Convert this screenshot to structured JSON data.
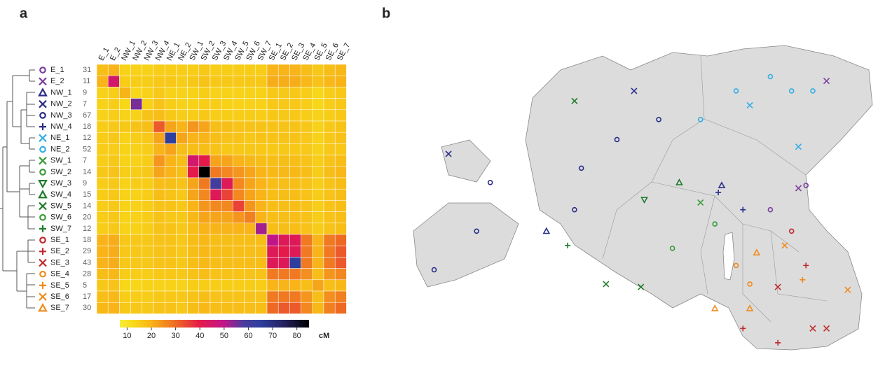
{
  "chart_data": [
    {
      "type": "heatmap",
      "panel": "a",
      "groups": [
        {
          "name": "E_1",
          "count": 31,
          "color": "#7b3f9e",
          "symbol": "circle"
        },
        {
          "name": "E_2",
          "count": 11,
          "color": "#7b3f9e",
          "symbol": "x"
        },
        {
          "name": "NW_1",
          "count": 9,
          "color": "#2b2d8a",
          "symbol": "triangle"
        },
        {
          "name": "NW_2",
          "count": 7,
          "color": "#2b2d8a",
          "symbol": "x"
        },
        {
          "name": "NW_3",
          "count": 67,
          "color": "#2b2d8a",
          "symbol": "circle"
        },
        {
          "name": "NW_4",
          "count": 18,
          "color": "#2b2d8a",
          "symbol": "plus"
        },
        {
          "name": "NE_1",
          "count": 12,
          "color": "#35aee3",
          "symbol": "x"
        },
        {
          "name": "NE_2",
          "count": 52,
          "color": "#35aee3",
          "symbol": "circle"
        },
        {
          "name": "SW_1",
          "count": 7,
          "color": "#3a9a3a",
          "symbol": "x"
        },
        {
          "name": "SW_2",
          "count": 14,
          "color": "#3a9a3a",
          "symbol": "circle"
        },
        {
          "name": "SW_3",
          "count": 9,
          "color": "#1f7a2a",
          "symbol": "triangle-down"
        },
        {
          "name": "SW_4",
          "count": 15,
          "color": "#1f7a2a",
          "symbol": "triangle"
        },
        {
          "name": "SW_5",
          "count": 14,
          "color": "#1f7a2a",
          "symbol": "x"
        },
        {
          "name": "SW_6",
          "count": 20,
          "color": "#3a9a3a",
          "symbol": "circle"
        },
        {
          "name": "SW_7",
          "count": 12,
          "color": "#1f7a2a",
          "symbol": "plus"
        },
        {
          "name": "SE_1",
          "count": 18,
          "color": "#c0282d",
          "symbol": "circle"
        },
        {
          "name": "SE_2",
          "count": 29,
          "color": "#c0282d",
          "symbol": "plus"
        },
        {
          "name": "SE_3",
          "count": 43,
          "color": "#c0282d",
          "symbol": "x"
        },
        {
          "name": "SE_4",
          "count": 28,
          "color": "#f08a1c",
          "symbol": "circle"
        },
        {
          "name": "SE_5",
          "count": 5,
          "color": "#f08a1c",
          "symbol": "plus"
        },
        {
          "name": "SE_6",
          "count": 17,
          "color": "#f08a1c",
          "symbol": "x"
        },
        {
          "name": "SE_7",
          "count": 30,
          "color": "#f08a1c",
          "symbol": "triangle"
        }
      ],
      "matrix": [
        [
          18,
          20,
          14,
          14,
          14,
          15,
          15,
          15,
          15,
          16,
          15,
          15,
          15,
          15,
          15,
          20,
          20,
          20,
          18,
          16,
          18,
          19
        ],
        [
          20,
          45,
          15,
          15,
          15,
          16,
          16,
          15,
          16,
          17,
          16,
          16,
          16,
          16,
          16,
          21,
          21,
          21,
          19,
          17,
          19,
          20
        ],
        [
          14,
          15,
          20,
          13,
          14,
          16,
          14,
          14,
          14,
          15,
          14,
          14,
          14,
          14,
          14,
          16,
          16,
          16,
          15,
          13,
          15,
          16
        ],
        [
          14,
          15,
          13,
          55,
          14,
          17,
          15,
          14,
          14,
          15,
          15,
          14,
          14,
          14,
          14,
          16,
          16,
          16,
          15,
          13,
          15,
          16
        ],
        [
          14,
          15,
          14,
          14,
          17,
          18,
          16,
          15,
          15,
          16,
          15,
          15,
          15,
          15,
          15,
          16,
          16,
          16,
          15,
          14,
          15,
          16
        ],
        [
          15,
          16,
          16,
          17,
          18,
          32,
          22,
          20,
          24,
          22,
          18,
          18,
          17,
          17,
          17,
          17,
          17,
          17,
          16,
          14,
          16,
          17
        ],
        [
          15,
          16,
          14,
          15,
          16,
          22,
          65,
          22,
          20,
          20,
          18,
          17,
          17,
          16,
          17,
          17,
          17,
          17,
          16,
          14,
          16,
          17
        ],
        [
          15,
          15,
          14,
          14,
          15,
          20,
          22,
          18,
          18,
          18,
          17,
          16,
          16,
          16,
          16,
          16,
          16,
          16,
          16,
          14,
          16,
          16
        ],
        [
          15,
          16,
          14,
          14,
          15,
          24,
          20,
          18,
          45,
          40,
          22,
          22,
          20,
          19,
          18,
          18,
          18,
          18,
          17,
          15,
          17,
          18
        ],
        [
          16,
          17,
          15,
          15,
          16,
          22,
          20,
          18,
          40,
          88,
          28,
          26,
          24,
          22,
          20,
          19,
          19,
          19,
          18,
          15,
          18,
          19
        ],
        [
          15,
          16,
          14,
          15,
          15,
          18,
          18,
          17,
          22,
          28,
          60,
          42,
          26,
          22,
          20,
          18,
          18,
          18,
          17,
          15,
          17,
          18
        ],
        [
          15,
          16,
          14,
          14,
          15,
          18,
          17,
          16,
          22,
          26,
          42,
          35,
          26,
          22,
          20,
          18,
          18,
          18,
          17,
          15,
          17,
          18
        ],
        [
          15,
          16,
          14,
          14,
          15,
          17,
          17,
          16,
          20,
          24,
          26,
          26,
          35,
          24,
          20,
          18,
          18,
          18,
          17,
          15,
          17,
          18
        ],
        [
          15,
          16,
          14,
          14,
          15,
          17,
          16,
          16,
          19,
          22,
          22,
          22,
          24,
          27,
          20,
          18,
          18,
          18,
          17,
          15,
          17,
          18
        ],
        [
          15,
          16,
          14,
          14,
          15,
          17,
          17,
          16,
          18,
          20,
          20,
          20,
          20,
          20,
          52,
          18,
          18,
          18,
          17,
          15,
          17,
          18
        ],
        [
          20,
          21,
          16,
          16,
          16,
          17,
          17,
          16,
          18,
          19,
          18,
          18,
          18,
          18,
          18,
          50,
          42,
          42,
          28,
          20,
          28,
          30
        ],
        [
          20,
          21,
          16,
          16,
          16,
          17,
          17,
          16,
          18,
          19,
          18,
          18,
          18,
          18,
          18,
          42,
          40,
          42,
          28,
          20,
          28,
          32
        ],
        [
          20,
          21,
          16,
          16,
          16,
          17,
          17,
          16,
          18,
          19,
          18,
          18,
          18,
          18,
          18,
          42,
          42,
          65,
          28,
          20,
          28,
          32
        ],
        [
          18,
          19,
          15,
          15,
          15,
          16,
          16,
          16,
          17,
          18,
          17,
          17,
          17,
          17,
          17,
          28,
          28,
          28,
          25,
          18,
          24,
          26
        ],
        [
          16,
          17,
          13,
          13,
          14,
          14,
          14,
          14,
          15,
          15,
          15,
          15,
          15,
          15,
          15,
          20,
          20,
          20,
          18,
          22,
          18,
          19
        ],
        [
          18,
          19,
          15,
          15,
          15,
          16,
          16,
          16,
          17,
          18,
          17,
          17,
          17,
          17,
          17,
          28,
          28,
          28,
          24,
          18,
          25,
          27
        ],
        [
          19,
          20,
          16,
          16,
          16,
          17,
          17,
          16,
          18,
          19,
          18,
          18,
          18,
          18,
          18,
          30,
          32,
          32,
          26,
          19,
          27,
          30
        ]
      ],
      "colorbar": {
        "lim": [
          7,
          85
        ],
        "ticks": [
          10,
          20,
          30,
          40,
          50,
          60,
          70,
          80
        ],
        "unit": "cM",
        "colorscale": [
          {
            "value": 7,
            "color": "#f6ec3a"
          },
          {
            "value": 12,
            "color": "#f8dc18"
          },
          {
            "value": 20,
            "color": "#f8b418"
          },
          {
            "value": 30,
            "color": "#ee6a24"
          },
          {
            "value": 40,
            "color": "#e41a4a"
          },
          {
            "value": 50,
            "color": "#c0158a"
          },
          {
            "value": 58,
            "color": "#4a3c9c"
          },
          {
            "value": 65,
            "color": "#2e3e9e"
          },
          {
            "value": 75,
            "color": "#24205a"
          },
          {
            "value": 85,
            "color": "#000000"
          }
        ]
      }
    },
    {
      "type": "map",
      "panel": "b",
      "lon_lim": [
        21.7,
        28.3
      ],
      "lat_lim": [
        57.5,
        59.75
      ],
      "points": [
        {
          "group": "NE_2",
          "lon": 27.43,
          "lat": 59.31
        },
        {
          "group": "NE_2",
          "lon": 27.12,
          "lat": 59.31
        },
        {
          "group": "NE_2",
          "lon": 26.81,
          "lat": 59.41
        },
        {
          "group": "NE_1",
          "lon": 27.22,
          "lat": 58.92
        },
        {
          "group": "NE_1",
          "lon": 26.51,
          "lat": 59.21
        },
        {
          "group": "NE_2",
          "lon": 26.31,
          "lat": 59.31
        },
        {
          "group": "NE_2",
          "lon": 25.79,
          "lat": 59.11
        },
        {
          "group": "E_2",
          "lon": 27.63,
          "lat": 59.38
        },
        {
          "group": "E_1",
          "lon": 27.33,
          "lat": 58.65
        },
        {
          "group": "E_2",
          "lon": 27.22,
          "lat": 58.63
        },
        {
          "group": "E_1",
          "lon": 26.81,
          "lat": 58.48
        },
        {
          "group": "NW_1",
          "lon": 26.1,
          "lat": 58.65
        },
        {
          "group": "NW_4",
          "lon": 26.05,
          "lat": 58.6
        },
        {
          "group": "NW_4",
          "lon": 26.41,
          "lat": 58.48
        },
        {
          "group": "NW_3",
          "lon": 25.18,
          "lat": 59.11
        },
        {
          "group": "NW_3",
          "lon": 24.57,
          "lat": 58.97
        },
        {
          "group": "NW_3",
          "lon": 24.05,
          "lat": 58.77
        },
        {
          "group": "NW_3",
          "lon": 23.95,
          "lat": 58.48
        },
        {
          "group": "NW_2",
          "lon": 24.82,
          "lat": 59.31
        },
        {
          "group": "NW_2",
          "lon": 22.11,
          "lat": 58.87
        },
        {
          "group": "NW_3",
          "lon": 22.72,
          "lat": 58.67
        },
        {
          "group": "NW_3",
          "lon": 22.52,
          "lat": 58.33
        },
        {
          "group": "NW_3",
          "lon": 21.9,
          "lat": 58.06
        },
        {
          "group": "NW_1",
          "lon": 23.54,
          "lat": 58.33
        },
        {
          "group": "SW_5",
          "lon": 23.95,
          "lat": 59.24
        },
        {
          "group": "SW_7",
          "lon": 23.85,
          "lat": 58.23
        },
        {
          "group": "SW_5",
          "lon": 24.41,
          "lat": 57.96
        },
        {
          "group": "SW_3",
          "lon": 24.97,
          "lat": 58.55
        },
        {
          "group": "SW_4",
          "lon": 25.48,
          "lat": 58.67
        },
        {
          "group": "SW_6",
          "lon": 26.0,
          "lat": 58.38
        },
        {
          "group": "SW_2",
          "lon": 25.38,
          "lat": 58.21
        },
        {
          "group": "SW_1",
          "lon": 25.79,
          "lat": 58.53
        },
        {
          "group": "SW_5",
          "lon": 24.92,
          "lat": 57.94
        },
        {
          "group": "SE_1",
          "lon": 27.12,
          "lat": 58.33
        },
        {
          "group": "SE_3",
          "lon": 26.92,
          "lat": 57.94
        },
        {
          "group": "SE_3",
          "lon": 27.43,
          "lat": 57.65
        },
        {
          "group": "SE_3",
          "lon": 27.63,
          "lat": 57.65
        },
        {
          "group": "SE_2",
          "lon": 26.41,
          "lat": 57.65
        },
        {
          "group": "SE_2",
          "lon": 26.92,
          "lat": 57.55
        },
        {
          "group": "SE_2",
          "lon": 27.33,
          "lat": 58.09
        },
        {
          "group": "SE_6",
          "lon": 27.94,
          "lat": 57.92
        },
        {
          "group": "SE_4",
          "lon": 26.31,
          "lat": 58.09
        },
        {
          "group": "SE_4",
          "lon": 26.51,
          "lat": 57.96
        },
        {
          "group": "SE_7",
          "lon": 26.0,
          "lat": 57.79
        },
        {
          "group": "SE_7",
          "lon": 26.51,
          "lat": 57.79
        },
        {
          "group": "SE_5",
          "lon": 27.28,
          "lat": 57.99
        },
        {
          "group": "SE_6",
          "lon": 27.02,
          "lat": 58.23
        },
        {
          "group": "SE_7",
          "lon": 26.61,
          "lat": 58.18
        }
      ]
    }
  ]
}
